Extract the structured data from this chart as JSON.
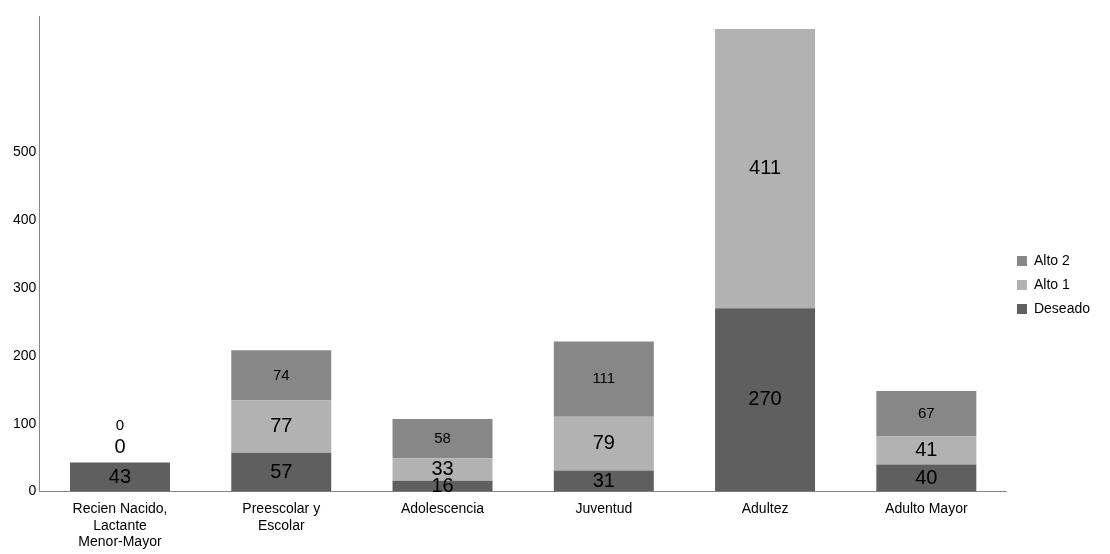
{
  "chart_data": {
    "type": "bar",
    "stacked": true,
    "categories": [
      "Recien Nacido, Lactante Menor-Mayor",
      "Preescolar y Escolar",
      "Adolescencia",
      "Juventud",
      "Adultez",
      "Adulto Mayor"
    ],
    "series": [
      {
        "name": "Deseado",
        "color": "#5f5f5f",
        "values": [
          43,
          57,
          16,
          31,
          270,
          40
        ]
      },
      {
        "name": "Alto 1",
        "color": "#b2b2b2",
        "values": [
          0,
          77,
          33,
          79,
          411,
          41
        ]
      },
      {
        "name": "Alto 2",
        "color": "#878787",
        "values": [
          0,
          74,
          58,
          111,
          null,
          67
        ]
      }
    ],
    "ylim": [
      0,
      700
    ],
    "yticks": [
      0,
      100,
      200,
      300,
      400,
      500
    ],
    "grid": false,
    "legend": "right",
    "data_labels": true
  }
}
